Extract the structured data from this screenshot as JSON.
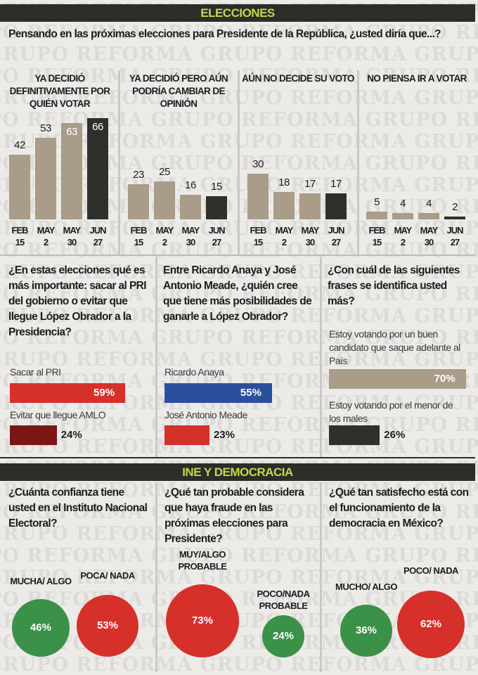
{
  "watermark": "GRUPO REFORMA",
  "colors": {
    "beige": "#a99c88",
    "dark": "#2e302c",
    "red": "#d6302a",
    "darkred": "#7b1612",
    "blue": "#2b4f9b",
    "green": "#3b9148",
    "band": "#2b2d29",
    "band_text": "#c6d64a"
  },
  "section1": {
    "title": "ELECCIONES",
    "question": "Pensando en las próximas elecciones para Presidente de la República, ¿usted diría que...?"
  },
  "section2": {
    "title": "INE Y DEMOCRACIA"
  },
  "chart_data": [
    {
      "type": "bar",
      "title": "Pensando en las próximas elecciones para Presidente de la República, ¿usted diría que...?",
      "categories": [
        "FEB 15",
        "MAY 2",
        "MAY 30",
        "JUN 27"
      ],
      "panels": [
        {
          "title": "YA DECIDIÓ DEFINITIVAMENTE POR QUIÉN VOTAR",
          "values": [
            42,
            53,
            63,
            66
          ]
        },
        {
          "title": "YA DECIDIÓ PERO AÚN PODRÍA CAMBIAR DE OPINIÓN",
          "values": [
            23,
            25,
            16,
            15
          ]
        },
        {
          "title": "AÚN NO DECIDE SU VOTO",
          "values": [
            30,
            18,
            17,
            17
          ]
        },
        {
          "title": "NO PIENSA IR A VOTAR",
          "values": [
            5,
            4,
            4,
            2
          ]
        }
      ],
      "ylim": [
        0,
        70
      ],
      "grid": false,
      "highlight_last": true
    },
    {
      "type": "bar",
      "orientation": "horizontal",
      "title": "¿En estas elecciones qué es más importante: sacar al PRI del gobierno o evitar que llegue López Obrador a la Presidencia?",
      "items": [
        {
          "label": "Sacar al PRI",
          "value": 59,
          "display": "59%",
          "color": "#d6302a"
        },
        {
          "label": "Evitar que llegue AMLO",
          "value": 24,
          "display": "24%",
          "color": "#7b1612"
        }
      ]
    },
    {
      "type": "bar",
      "orientation": "horizontal",
      "title": "Entre Ricardo Anaya y José Antonio Meade, ¿quién cree que tiene más posibilidades de ganarle a López Obrador?",
      "items": [
        {
          "label": "Ricardo Anaya",
          "value": 55,
          "display": "55%",
          "color": "#2b4f9b"
        },
        {
          "label": "José Antonio Meade",
          "value": 23,
          "display": "23%",
          "color": "#d6302a"
        }
      ]
    },
    {
      "type": "bar",
      "orientation": "horizontal",
      "title": "¿Con cuál de las siguientes frases se identifica usted más?",
      "items": [
        {
          "label": "Estoy votando por un buen candidato que saque adelante al País",
          "value": 70,
          "display": "70%",
          "color": "#a99c88"
        },
        {
          "label": "Estoy votando por el menor de los males",
          "value": 26,
          "display": "26%",
          "color": "#2e302c"
        }
      ]
    },
    {
      "type": "bubble",
      "title": "¿Cuánta confianza tiene usted en el Instituto Nacional Electoral?",
      "items": [
        {
          "label": "MUCHA/ ALGO",
          "value": 46,
          "display": "46%",
          "color": "#3b9148"
        },
        {
          "label": "POCA/ NADA",
          "value": 53,
          "display": "53%",
          "color": "#d6302a"
        }
      ]
    },
    {
      "type": "bubble",
      "title": "¿Qué tan probable considera que haya fraude en las próximas elecciones para Presidente?",
      "items": [
        {
          "label": "MUY/ALGO PROBABLE",
          "value": 73,
          "display": "73%",
          "color": "#d6302a"
        },
        {
          "label": "POCO/NADA PROBABLE",
          "value": 24,
          "display": "24%",
          "color": "#3b9148"
        }
      ]
    },
    {
      "type": "bubble",
      "title": "¿Qué tan satisfecho está con el funcionamiento de la democracia en México?",
      "items": [
        {
          "label": "MUCHO/ ALGO",
          "value": 36,
          "display": "36%",
          "color": "#3b9148"
        },
        {
          "label": "POCO/ NADA",
          "value": 62,
          "display": "62%",
          "color": "#d6302a"
        }
      ]
    }
  ]
}
